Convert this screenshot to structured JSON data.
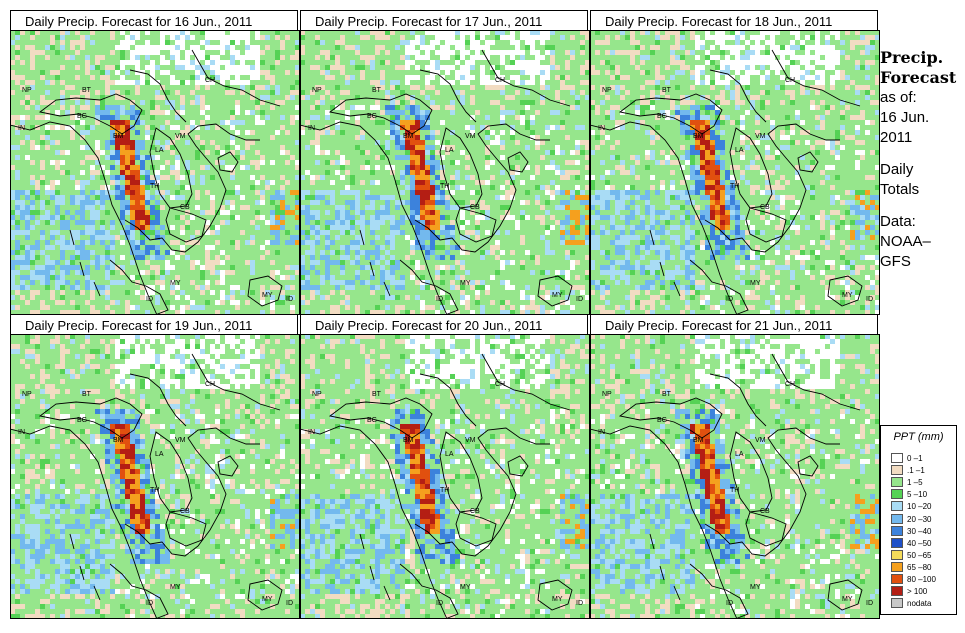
{
  "panels": [
    {
      "title": "Daily Precip. Forecast for  16 Jun., 2011"
    },
    {
      "title": "Daily Precip. Forecast for  17 Jun., 2011"
    },
    {
      "title": "Daily Precip. Forecast for  18 Jun., 2011"
    },
    {
      "title": "Daily Precip. Forecast for  19 Jun., 2011"
    },
    {
      "title": "Daily Precip. Forecast for  20 Jun., 2011"
    },
    {
      "title": "Daily Precip. Forecast for  21 Jun., 2011"
    }
  ],
  "map_labels": [
    "NP",
    "BT",
    "IN",
    "BG",
    "BM",
    "CH",
    "VM",
    "LA",
    "TH",
    "CB",
    "MY",
    "ID",
    "MY",
    "ID"
  ],
  "side": {
    "heading1": "Precip.",
    "heading2": "Forecast",
    "asof": "as of:",
    "date1": "16 Jun.",
    "date2": "2011",
    "daily1": "Daily",
    "daily2": "Totals",
    "data1": "Data:",
    "data2": "NOAA–",
    "data3": "GFS"
  },
  "legend": {
    "title": "PPT (mm)",
    "items": [
      {
        "label": "0 –1",
        "color": "#ffffff"
      },
      {
        "label": ".1 –1",
        "color": "#f2dcc2"
      },
      {
        "label": "1 –5",
        "color": "#96e68c"
      },
      {
        "label": "5 –10",
        "color": "#55d255"
      },
      {
        "label": "10 –20",
        "color": "#a9dcf5"
      },
      {
        "label": "20 –30",
        "color": "#73b9ee"
      },
      {
        "label": "30 –40",
        "color": "#3c82dc"
      },
      {
        "label": "40 –50",
        "color": "#1e50c8"
      },
      {
        "label": "50 –65",
        "color": "#f5dc5a"
      },
      {
        "label": "65 –80",
        "color": "#f5a01e"
      },
      {
        "label": "80 –100",
        "color": "#e1500f"
      },
      {
        "label": "> 100",
        "color": "#b41e14"
      },
      {
        "label": "nodata",
        "color": "#c8c8c8"
      }
    ]
  }
}
